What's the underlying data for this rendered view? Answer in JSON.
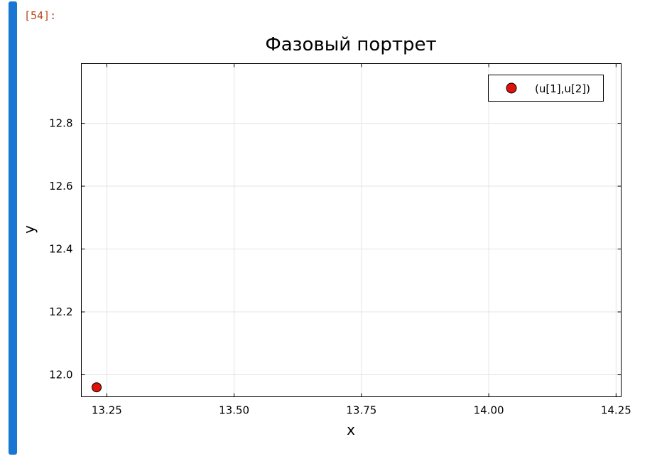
{
  "cell": {
    "prompt": "[54]:",
    "accent_color": "#1976d2",
    "prompt_color": "#b7471c"
  },
  "chart_data": {
    "type": "scatter",
    "title": "Фазовый портрет",
    "xlabel": "x",
    "ylabel": "y",
    "xlim": [
      13.2,
      14.26
    ],
    "ylim": [
      11.93,
      12.99
    ],
    "xticks": [
      13.25,
      13.5,
      13.75,
      14.0,
      14.25
    ],
    "xtick_labels": [
      "13.25",
      "13.50",
      "13.75",
      "14.00",
      "14.25"
    ],
    "yticks": [
      12.0,
      12.2,
      12.4,
      12.6,
      12.8
    ],
    "ytick_labels": [
      "12.0",
      "12.2",
      "12.4",
      "12.6",
      "12.8"
    ],
    "grid": true,
    "legend_position": "top-right",
    "series": [
      {
        "name": "(u[1],u[2])",
        "color": "#e0120b",
        "points": [
          [
            13.23,
            11.96
          ]
        ]
      }
    ]
  }
}
